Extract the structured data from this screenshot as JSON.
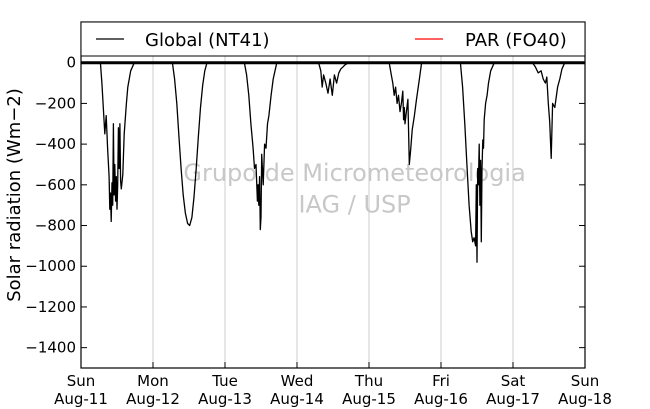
{
  "chart_data": {
    "type": "line",
    "ylabel": "Solar radiation (Wm−2)",
    "ylim": [
      -1500,
      200
    ],
    "yticks": [
      0,
      -200,
      -400,
      -600,
      -800,
      -1000,
      -1200,
      -1400
    ],
    "xlim": [
      0,
      7
    ],
    "xticks": [
      {
        "day": "Sun",
        "date": "Aug-11"
      },
      {
        "day": "Mon",
        "date": "Aug-12"
      },
      {
        "day": "Tue",
        "date": "Aug-13"
      },
      {
        "day": "Wed",
        "date": "Aug-14"
      },
      {
        "day": "Thu",
        "date": "Aug-15"
      },
      {
        "day": "Fri",
        "date": "Aug-16"
      },
      {
        "day": "Sat",
        "date": "Aug-17"
      },
      {
        "day": "Sun",
        "date": "Aug-18"
      }
    ],
    "grid": "vertical",
    "legend_position": "top",
    "watermark": [
      "Grupo de Micrometeorologia",
      "IAG / USP"
    ],
    "colors": {
      "global": "#000000",
      "par": "#ff0000",
      "grid": "#cccccc",
      "watermark": "#c8c8c8"
    },
    "series": [
      {
        "name": "Global (NT41)",
        "color": "#000000",
        "x": [
          0.0,
          0.27,
          0.29,
          0.31,
          0.33,
          0.35,
          0.37,
          0.39,
          0.4,
          0.41,
          0.42,
          0.43,
          0.44,
          0.45,
          0.46,
          0.47,
          0.48,
          0.49,
          0.5,
          0.51,
          0.52,
          0.53,
          0.54,
          0.55,
          0.56,
          0.58,
          0.6,
          0.63,
          0.65,
          0.69,
          0.74,
          1.0,
          1.27,
          1.3,
          1.33,
          1.36,
          1.39,
          1.42,
          1.45,
          1.48,
          1.51,
          1.54,
          1.57,
          1.6,
          1.63,
          1.66,
          1.69,
          1.72,
          1.75,
          2.0,
          2.27,
          2.3,
          2.33,
          2.36,
          2.39,
          2.41,
          2.43,
          2.45,
          2.46,
          2.47,
          2.48,
          2.49,
          2.5,
          2.51,
          2.53,
          2.55,
          2.57,
          2.59,
          2.61,
          2.64,
          2.67,
          2.72,
          3.0,
          3.3,
          3.33,
          3.35,
          3.37,
          3.4,
          3.43,
          3.46,
          3.49,
          3.52,
          3.55,
          3.58,
          3.61,
          3.64,
          3.67,
          3.72,
          4.0,
          4.28,
          4.31,
          4.33,
          4.35,
          4.37,
          4.39,
          4.41,
          4.43,
          4.45,
          4.47,
          4.48,
          4.49,
          4.5,
          4.52,
          4.54,
          4.56,
          4.58,
          4.6,
          4.63,
          4.66,
          4.7,
          4.73,
          5.0,
          5.27,
          5.3,
          5.33,
          5.36,
          5.39,
          5.42,
          5.44,
          5.46,
          5.48,
          5.49,
          5.5,
          5.51,
          5.52,
          5.53,
          5.54,
          5.55,
          5.56,
          5.57,
          5.58,
          5.59,
          5.6,
          5.62,
          5.64,
          5.66,
          5.69,
          5.74,
          6.0,
          6.27,
          6.31,
          6.35,
          6.39,
          6.42,
          6.45,
          6.47,
          6.49,
          6.51,
          6.53,
          6.55,
          6.58,
          6.62,
          6.65,
          6.68,
          6.72,
          7.0
        ],
        "y": [
          0,
          0,
          -100,
          -220,
          -350,
          -260,
          -420,
          -560,
          -720,
          -640,
          -780,
          -590,
          -700,
          -300,
          -650,
          -500,
          -680,
          -560,
          -720,
          -600,
          -320,
          -520,
          -300,
          -580,
          -620,
          -550,
          -350,
          -200,
          -120,
          -40,
          0,
          0,
          0,
          -80,
          -200,
          -360,
          -520,
          -650,
          -740,
          -790,
          -800,
          -760,
          -660,
          -520,
          -360,
          -220,
          -110,
          -40,
          0,
          0,
          0,
          -60,
          -160,
          -300,
          -420,
          -520,
          -500,
          -680,
          -600,
          -700,
          -560,
          -820,
          -760,
          -450,
          -600,
          -400,
          -420,
          -300,
          -260,
          -160,
          -80,
          0,
          0,
          0,
          -40,
          -120,
          -60,
          -100,
          -150,
          -80,
          -160,
          -60,
          -100,
          -50,
          -30,
          -20,
          -10,
          0,
          0,
          0,
          -60,
          -100,
          -160,
          -120,
          -200,
          -160,
          -240,
          -200,
          -140,
          -280,
          -220,
          -300,
          -240,
          -180,
          -500,
          -420,
          -330,
          -260,
          -180,
          -80,
          0,
          0,
          0,
          -120,
          -300,
          -500,
          -700,
          -830,
          -880,
          -860,
          -900,
          -600,
          -980,
          -520,
          -600,
          -400,
          -700,
          -480,
          -880,
          -520,
          -380,
          -420,
          -280,
          -200,
          -160,
          -100,
          -40,
          0,
          0,
          0,
          -20,
          -50,
          -40,
          -80,
          -100,
          -70,
          -200,
          -290,
          -470,
          -200,
          -220,
          -120,
          -80,
          -30,
          0,
          0
        ]
      },
      {
        "name": "PAR (FO40)",
        "color": "#ff0000",
        "x": [
          0,
          7
        ],
        "y": [
          0,
          0
        ]
      }
    ]
  }
}
